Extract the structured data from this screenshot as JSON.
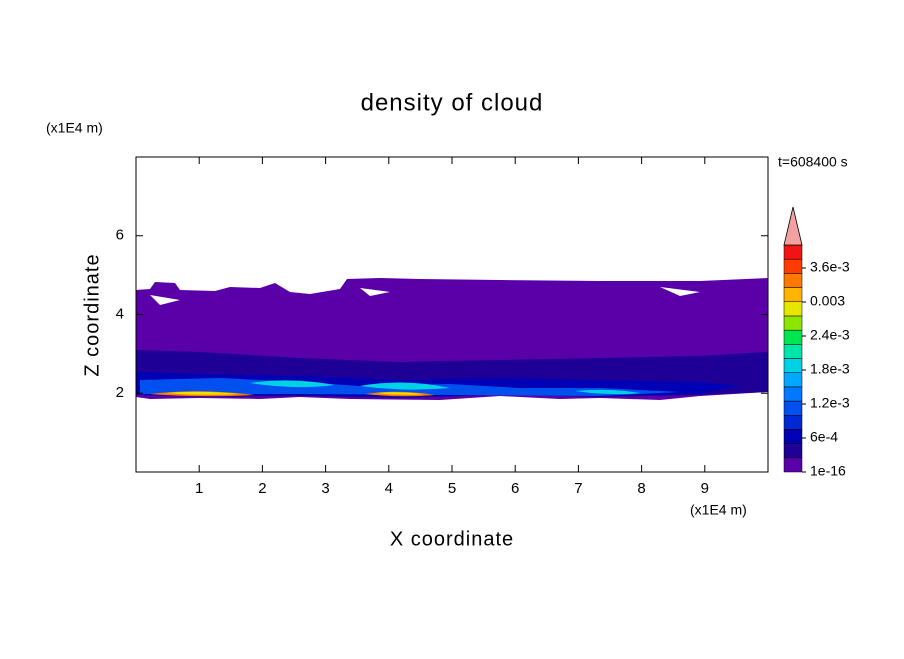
{
  "chart_data": {
    "type": "contour",
    "title": "density of cloud",
    "x_label": "X coordinate",
    "y_label": "Z coordinate",
    "x_unit": "(x1E4 m)",
    "y_unit": "(x1E4 m)",
    "annotation": "t=608400 s",
    "xlim": [
      0,
      10
    ],
    "ylim": [
      0,
      8
    ],
    "xticks": [
      1,
      2,
      3,
      4,
      5,
      6,
      7,
      8,
      9
    ],
    "yticks": [
      2,
      4,
      6
    ],
    "colorbar": {
      "lim": [
        1e-16,
        0.0039
      ],
      "ticks": [
        1e-16,
        {
          "value": 0.0006,
          "label": "6e-4"
        },
        {
          "value": 0.0012,
          "label": "1.2e-3"
        },
        {
          "value": 0.0018,
          "label": "1.8e-3"
        },
        {
          "value": 0.0024,
          "label": "2.4e-3"
        },
        0.003,
        {
          "value": 0.0036,
          "label": "3.6e-3"
        }
      ],
      "colors": [
        "#5a00a8",
        "#1e0096",
        "#0000b4",
        "#0028d2",
        "#0050f0",
        "#0078ff",
        "#00a8ff",
        "#00d2e6",
        "#00e6aa",
        "#00e650",
        "#8ce600",
        "#e6e600",
        "#ffb400",
        "#ff7800",
        "#ff3c00",
        "#f01414"
      ],
      "extend_color": "#f4a0a0"
    }
  }
}
